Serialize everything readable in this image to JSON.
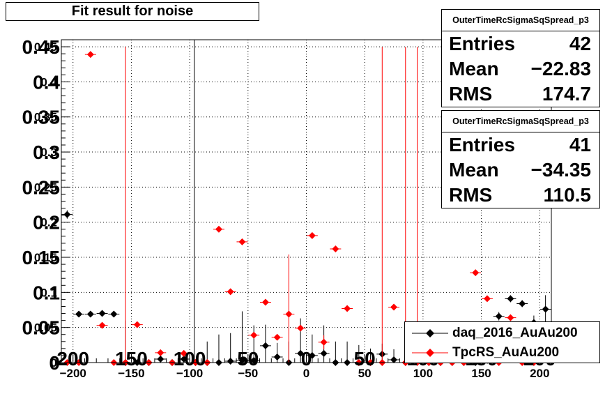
{
  "title": "Fit result for noise",
  "stats_boxes": [
    {
      "name": "OuterTimeRcSigmaSqSpread_p3",
      "entries_label": "Entries",
      "entries": "42",
      "mean_label": "Mean",
      "mean": "−22.83",
      "rms_label": "RMS",
      "rms": "174.7"
    },
    {
      "name": "OuterTimeRcSigmaSqSpread_p3",
      "entries_label": "Entries",
      "entries": "41",
      "mean_label": "Mean",
      "mean": "−34.35",
      "rms_label": "RMS",
      "rms": "110.5"
    }
  ],
  "colors": {
    "black_series": "#000000",
    "red_series": "#ff0000",
    "grid": "#000000"
  },
  "chart_data": {
    "type": "scatter",
    "title": "Fit result for noise",
    "xlabel": "",
    "ylabel": "",
    "xlim": [
      -210,
      210
    ],
    "ylim": [
      0,
      0.46
    ],
    "grid": true,
    "legend_position": "bottom-right",
    "x_ticks": [
      -200,
      -150,
      -100,
      -50,
      0,
      50,
      100,
      150,
      200
    ],
    "x_tick_labels": [
      "−200",
      "−150",
      "−100",
      "−50",
      "0",
      "50",
      "100",
      "150",
      "200"
    ],
    "y_ticks": [
      0,
      0.05,
      0.1,
      0.15,
      0.2,
      0.25,
      0.3,
      0.35,
      0.4,
      0.45
    ],
    "y_tick_labels": [
      "0",
      "0.05",
      "0.1",
      "0.15",
      "0.2",
      "0.25",
      "0.3",
      "0.35",
      "0.4",
      "0.45"
    ],
    "overdraw_x_labels": [
      "200",
      "150",
      "100",
      "50",
      "0",
      "50",
      "100",
      "150",
      "200"
    ],
    "overdraw_y_labels": [
      "0",
      "0.05",
      "0.1",
      "0.15",
      "0.2",
      "0.25",
      "0.3",
      "0.35",
      "0.4",
      "0.45"
    ],
    "series": [
      {
        "name": "daq_2016_AuAu200",
        "color": "#000000",
        "points": [
          [
            -205,
            0.211,
            0.006
          ],
          [
            -195,
            0.069,
            0
          ],
          [
            -185,
            0.069,
            0
          ],
          [
            -175,
            0.07,
            0
          ],
          [
            -165,
            0.069,
            0
          ],
          [
            -155,
            0,
            0.06
          ],
          [
            -145,
            0,
            0
          ],
          [
            -135,
            0,
            0
          ],
          [
            -125,
            0.005,
            0
          ],
          [
            -115,
            0,
            0
          ],
          [
            -105,
            0.005,
            0
          ],
          [
            -95,
            0,
            0
          ],
          [
            -85,
            0,
            0.03
          ],
          [
            -75,
            0,
            0.04
          ],
          [
            -65,
            0.002,
            0.04
          ],
          [
            -55,
            0.003,
            0.07
          ],
          [
            -45,
            0.003,
            0.05
          ],
          [
            -35,
            0.024,
            0.03
          ],
          [
            -25,
            0.008,
            0.02
          ],
          [
            -15,
            0,
            0.03
          ],
          [
            -5,
            0.013,
            0.05
          ],
          [
            5,
            0.01,
            0.03
          ],
          [
            15,
            0.013,
            0.04
          ],
          [
            25,
            0,
            0.03
          ],
          [
            35,
            0,
            0.03
          ],
          [
            45,
            0,
            0.025
          ],
          [
            55,
            0,
            0.02
          ],
          [
            65,
            0.012,
            0.015
          ],
          [
            75,
            0.004,
            0.015
          ],
          [
            85,
            0,
            0
          ],
          [
            95,
            0.002,
            0
          ],
          [
            105,
            0,
            0
          ],
          [
            115,
            0,
            0
          ],
          [
            125,
            0,
            0
          ],
          [
            135,
            0,
            0
          ],
          [
            145,
            0,
            0
          ],
          [
            155,
            0.003,
            0.01
          ],
          [
            165,
            0.066,
            0.006
          ],
          [
            175,
            0.091,
            0.005
          ],
          [
            185,
            0.084,
            0.005
          ],
          [
            195,
            0.057,
            0.01
          ],
          [
            205,
            0.076,
            0.02
          ]
        ]
      },
      {
        "name": "TpcRS_AuAu200",
        "color": "#ff0000",
        "points": [
          [
            -205,
            0,
            0
          ],
          [
            -195,
            0,
            0
          ],
          [
            -185,
            0.439,
            0.001
          ],
          [
            -175,
            0.053,
            0
          ],
          [
            -165,
            0,
            0
          ],
          [
            -155,
            0,
            0.45
          ],
          [
            -145,
            0.054,
            0
          ],
          [
            -135,
            0,
            0
          ],
          [
            -125,
            0.014,
            0
          ],
          [
            -115,
            0,
            0
          ],
          [
            -105,
            0.013,
            0
          ],
          [
            -95,
            0,
            0
          ],
          [
            -85,
            0,
            0
          ],
          [
            -75,
            0.19,
            0.001
          ],
          [
            -65,
            0.101,
            0.001
          ],
          [
            -55,
            0.172,
            0.001
          ],
          [
            -45,
            0.039,
            0.001
          ],
          [
            -35,
            0.086,
            0.001
          ],
          [
            -25,
            0.036,
            0.001
          ],
          [
            -15,
            0.069,
            0.085
          ],
          [
            -5,
            0.049,
            0.001
          ],
          [
            5,
            0.181,
            0.001
          ],
          [
            15,
            0.029,
            0.01
          ],
          [
            25,
            0.162,
            0.001
          ],
          [
            35,
            0.077,
            0.001
          ],
          [
            45,
            0,
            0
          ],
          [
            55,
            0,
            0
          ],
          [
            65,
            0,
            0.45
          ],
          [
            75,
            0.079,
            0.001
          ],
          [
            85,
            0,
            0.45
          ],
          [
            95,
            0,
            0.45
          ],
          [
            105,
            0,
            0
          ],
          [
            115,
            0,
            0
          ],
          [
            125,
            0,
            0
          ],
          [
            135,
            0,
            0
          ],
          [
            145,
            0.128,
            0.001
          ],
          [
            155,
            0.091,
            0.001
          ],
          [
            165,
            0,
            0
          ],
          [
            175,
            0.064,
            0.001
          ],
          [
            185,
            0,
            0
          ],
          [
            195,
            0,
            0
          ]
        ]
      }
    ],
    "vertical_lines": [
      {
        "x": -96,
        "color": "#000000"
      }
    ]
  }
}
